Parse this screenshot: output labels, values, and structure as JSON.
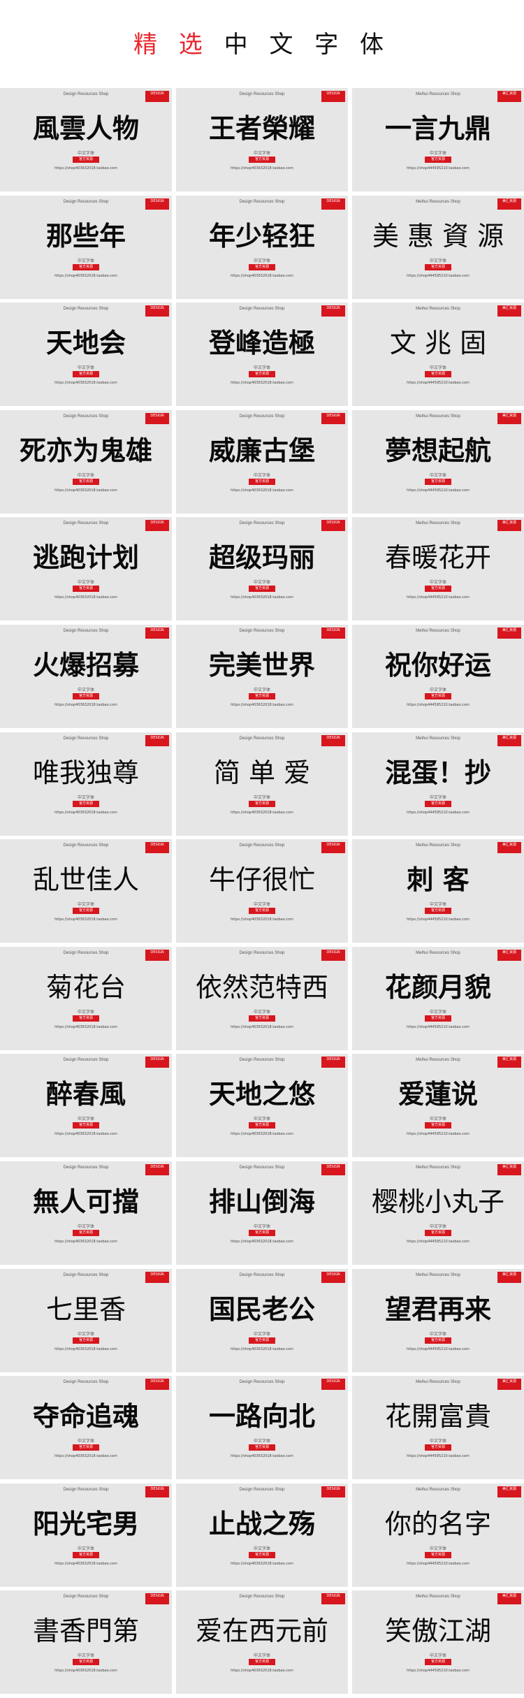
{
  "header": {
    "title_red": "精 选",
    "title_black": " 中 文 字 体"
  },
  "card_common": {
    "design_header": "Design Resources Shop",
    "meihui_header": "Meihui Resources Shop",
    "sub_label": "中文字体",
    "button_label": "官方资源",
    "brand_tag": "DESIGN",
    "meihui_tag": "美汇资源"
  },
  "fonts": [
    {
      "sample": "風雲人物",
      "url": "https://shop403632018.taobao.com",
      "style": "bold",
      "header": "design"
    },
    {
      "sample": "王者榮耀",
      "url": "https://shop403632018.taobao.com",
      "style": "bold",
      "header": "design"
    },
    {
      "sample": "一言九鼎",
      "url": "https://shop444595210.taobao.com",
      "style": "bold",
      "header": "meihui"
    },
    {
      "sample": "那些年",
      "url": "https://shop403632018.taobao.com",
      "style": "bold",
      "header": "design"
    },
    {
      "sample": "年少轻狂",
      "url": "https://shop403632018.taobao.com",
      "style": "bold",
      "header": "design"
    },
    {
      "sample": "美 惠 資 源",
      "url": "https://shop444595210.taobao.com",
      "style": "light",
      "header": "meihui"
    },
    {
      "sample": "天地会",
      "url": "https://shop403632018.taobao.com",
      "style": "bold",
      "header": "design"
    },
    {
      "sample": "登峰造極",
      "url": "https://shop403632018.taobao.com",
      "style": "bold",
      "header": "design"
    },
    {
      "sample": "文 兆 固",
      "url": "https://shop444595210.taobao.com",
      "style": "light",
      "header": "meihui"
    },
    {
      "sample": "死亦为鬼雄",
      "url": "https://shop403632018.taobao.com",
      "style": "bold",
      "header": "design"
    },
    {
      "sample": "威廉古堡",
      "url": "https://shop403632018.taobao.com",
      "style": "bold",
      "header": "design"
    },
    {
      "sample": "夢想起航",
      "url": "https://shop444595210.taobao.com",
      "style": "bold",
      "header": "meihui"
    },
    {
      "sample": "逃跑计划",
      "url": "https://shop403632018.taobao.com",
      "style": "bold",
      "header": "design"
    },
    {
      "sample": "超级玛丽",
      "url": "https://shop403632018.taobao.com",
      "style": "bold",
      "header": "design"
    },
    {
      "sample": "春暖花开",
      "url": "https://shop444595210.taobao.com",
      "style": "light",
      "header": "meihui"
    },
    {
      "sample": "火爆招募",
      "url": "https://shop403632018.taobao.com",
      "style": "bold",
      "header": "design"
    },
    {
      "sample": "完美世界",
      "url": "https://shop403632018.taobao.com",
      "style": "bold",
      "header": "design"
    },
    {
      "sample": "祝你好运",
      "url": "https://shop444595210.taobao.com",
      "style": "bold",
      "header": "meihui"
    },
    {
      "sample": "唯我独尊",
      "url": "https://shop403632018.taobao.com",
      "style": "light",
      "header": "design"
    },
    {
      "sample": "简 单 爱",
      "url": "https://shop403632018.taobao.com",
      "style": "light",
      "header": "design"
    },
    {
      "sample": "混蛋！抄",
      "url": "https://shop444595210.taobao.com",
      "style": "bold",
      "header": "meihui"
    },
    {
      "sample": "乱世佳人",
      "url": "https://shop403632018.taobao.com",
      "style": "light",
      "header": "design"
    },
    {
      "sample": "牛仔很忙",
      "url": "https://shop403632018.taobao.com",
      "style": "light",
      "header": "design"
    },
    {
      "sample": "刺 客",
      "url": "https://shop444595210.taobao.com",
      "style": "bold",
      "header": "meihui"
    },
    {
      "sample": "菊花台",
      "url": "https://shop403632018.taobao.com",
      "style": "light",
      "header": "design"
    },
    {
      "sample": "依然范特西",
      "url": "https://shop403632018.taobao.com",
      "style": "light",
      "header": "design"
    },
    {
      "sample": "花颜月貌",
      "url": "https://shop444595210.taobao.com",
      "style": "bold",
      "header": "meihui"
    },
    {
      "sample": "醉春風",
      "url": "https://shop403632018.taobao.com",
      "style": "bold",
      "header": "design"
    },
    {
      "sample": "天地之悠",
      "url": "https://shop403632018.taobao.com",
      "style": "bold",
      "header": "design"
    },
    {
      "sample": "爱蓮说",
      "url": "https://shop444595210.taobao.com",
      "style": "bold",
      "header": "meihui"
    },
    {
      "sample": "無人可擋",
      "url": "https://shop403632018.taobao.com",
      "style": "bold",
      "header": "design"
    },
    {
      "sample": "排山倒海",
      "url": "https://shop403632018.taobao.com",
      "style": "bold",
      "header": "design"
    },
    {
      "sample": "樱桃小丸子",
      "url": "https://shop444595210.taobao.com",
      "style": "light",
      "header": "meihui"
    },
    {
      "sample": "七里香",
      "url": "https://shop403632018.taobao.com",
      "style": "light",
      "header": "design"
    },
    {
      "sample": "国民老公",
      "url": "https://shop403632018.taobao.com",
      "style": "bold",
      "header": "design"
    },
    {
      "sample": "望君再来",
      "url": "https://shop444595210.taobao.com",
      "style": "bold",
      "header": "meihui"
    },
    {
      "sample": "夺命追魂",
      "url": "https://shop403632018.taobao.com",
      "style": "bold",
      "header": "design"
    },
    {
      "sample": "一路向北",
      "url": "https://shop403632018.taobao.com",
      "style": "bold",
      "header": "design"
    },
    {
      "sample": "花開富貴",
      "url": "https://shop444595210.taobao.com",
      "style": "light",
      "header": "meihui"
    },
    {
      "sample": "阳光宅男",
      "url": "https://shop403632018.taobao.com",
      "style": "bold",
      "header": "design"
    },
    {
      "sample": "止战之殇",
      "url": "https://shop403632018.taobao.com",
      "style": "bold",
      "header": "design"
    },
    {
      "sample": "你的名字",
      "url": "https://shop444595210.taobao.com",
      "style": "light",
      "header": "meihui"
    },
    {
      "sample": "書香門第",
      "url": "https://shop403632018.taobao.com",
      "style": "light",
      "header": "design"
    },
    {
      "sample": "爱在西元前",
      "url": "https://shop403632018.taobao.com",
      "style": "light",
      "header": "design"
    },
    {
      "sample": "笑傲江湖",
      "url": "https://shop444595210.taobao.com",
      "style": "light",
      "header": "meihui"
    }
  ]
}
